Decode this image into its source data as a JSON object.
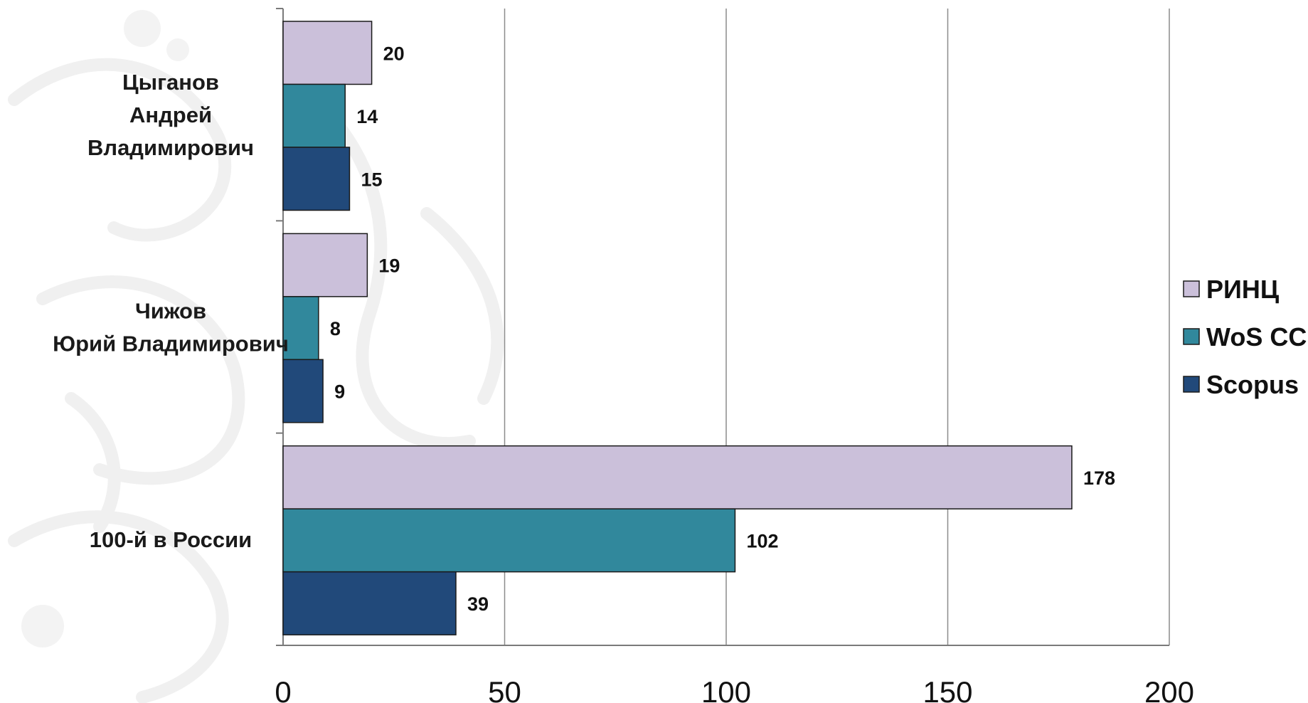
{
  "chart_data": {
    "type": "bar",
    "orientation": "horizontal",
    "categories": [
      [
        "Цыганов",
        "Андрей",
        "Владимирович"
      ],
      [
        "Чижов",
        "Юрий Владимирович"
      ],
      [
        "100-й в России"
      ]
    ],
    "series": [
      {
        "name": "РИНЦ",
        "color": "#cbc0da",
        "values": [
          20,
          19,
          178
        ]
      },
      {
        "name": "WoS CC",
        "color": "#31889c",
        "values": [
          14,
          8,
          102
        ]
      },
      {
        "name": "Scopus",
        "color": "#21497a",
        "values": [
          15,
          9,
          39
        ]
      }
    ],
    "xlim": [
      0,
      200
    ],
    "xticks": [
      0,
      50,
      100,
      150,
      200
    ],
    "grid": "vertical",
    "legend_position": "right"
  }
}
